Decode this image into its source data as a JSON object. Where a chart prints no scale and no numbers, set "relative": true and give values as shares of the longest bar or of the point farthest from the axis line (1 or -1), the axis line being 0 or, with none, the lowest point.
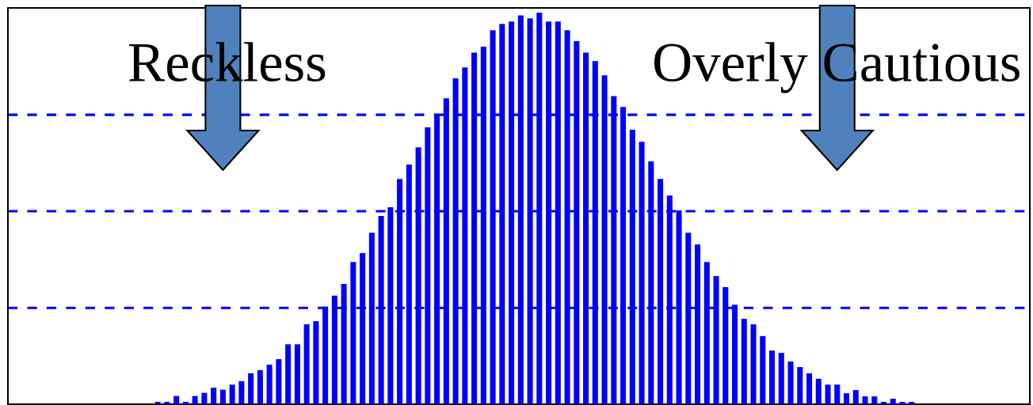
{
  "chart_data": {
    "type": "bar",
    "relative": true,
    "color": "#0000ff",
    "categories": [
      null,
      null,
      null,
      null,
      null,
      null,
      null,
      null,
      null,
      null,
      null,
      null,
      null,
      null,
      null,
      null,
      null,
      null,
      null,
      null,
      null,
      null,
      null,
      null,
      null,
      null,
      null,
      null,
      null,
      null,
      null,
      null,
      null,
      null,
      null,
      null,
      null,
      null,
      null,
      null,
      null,
      null,
      null,
      null,
      null,
      null,
      null,
      null,
      null,
      null,
      null,
      null,
      null,
      null,
      null,
      null,
      null,
      null,
      null,
      null,
      null,
      null,
      null,
      null,
      null,
      null,
      null,
      null,
      null,
      null,
      null,
      null,
      null,
      null,
      null,
      null,
      null,
      null,
      null,
      null,
      null,
      null
    ],
    "values": [
      0.006,
      0.006,
      0.021,
      0.006,
      0.021,
      0.029,
      0.042,
      0.037,
      0.05,
      0.059,
      0.079,
      0.087,
      0.101,
      0.115,
      0.153,
      0.153,
      0.204,
      0.212,
      0.249,
      0.277,
      0.307,
      0.363,
      0.386,
      0.438,
      0.481,
      0.503,
      0.575,
      0.612,
      0.656,
      0.707,
      0.738,
      0.781,
      0.832,
      0.86,
      0.898,
      0.913,
      0.955,
      0.971,
      0.977,
      0.993,
      0.985,
      1,
      0.977,
      0.977,
      0.955,
      0.927,
      0.898,
      0.876,
      0.84,
      0.787,
      0.759,
      0.701,
      0.67,
      0.62,
      0.575,
      0.533,
      0.495,
      0.438,
      0.408,
      0.363,
      0.327,
      0.299,
      0.254,
      0.218,
      0.204,
      0.174,
      0.137,
      0.131,
      0.109,
      0.095,
      0.079,
      0.065,
      0.05,
      0.05,
      0.028,
      0.036,
      0.02,
      0.02,
      0.006,
      0.014,
      0.006,
      0.006
    ],
    "ref_lines": [
      {
        "axis": "y",
        "value": 0.246,
        "color": "#0000ff",
        "line_style": "dashed"
      },
      {
        "axis": "y",
        "value": 0.493,
        "color": "#0000ff",
        "line_style": "dashed"
      },
      {
        "axis": "y",
        "value": 0.739,
        "color": "#0000ff",
        "line_style": "dashed"
      }
    ],
    "annotations": [
      "Reckless",
      "Overly Cautious"
    ],
    "grid": false
  }
}
